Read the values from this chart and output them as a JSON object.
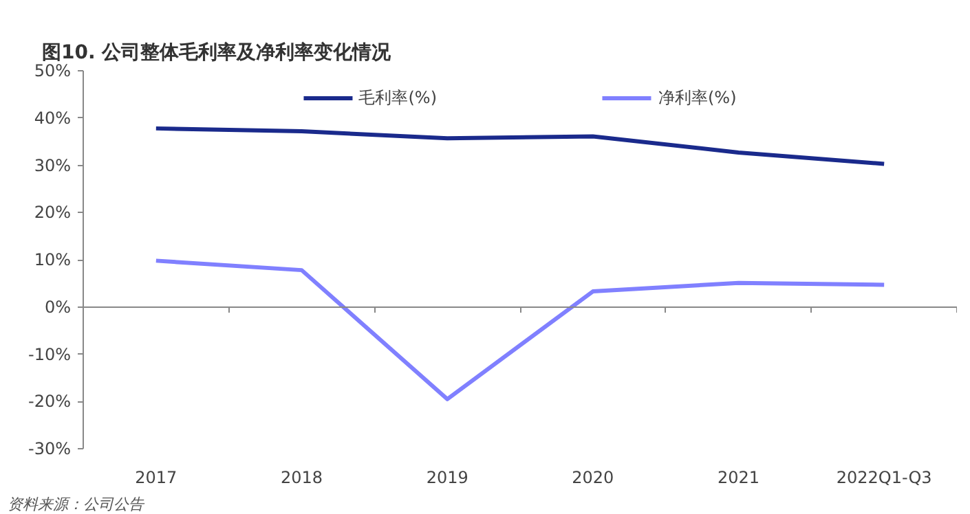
{
  "chart_data": {
    "type": "line",
    "title": "图10. 公司整体毛利率及净利率变化情况",
    "categories": [
      "2017",
      "2018",
      "2019",
      "2020",
      "2021",
      "2022Q1-Q3"
    ],
    "series": [
      {
        "name": "毛利率(%)",
        "color": "#1a2a8c",
        "values": [
          37.8,
          37.2,
          35.7,
          36.1,
          32.7,
          30.3
        ]
      },
      {
        "name": "净利率(%)",
        "color": "#8080ff",
        "values": [
          9.8,
          7.8,
          -19.5,
          3.3,
          5.1,
          4.7
        ]
      }
    ],
    "ylim": [
      -30,
      50
    ],
    "yticks": [
      {
        "value": -30,
        "label": "-30%"
      },
      {
        "value": -20,
        "label": "-20%"
      },
      {
        "value": -10,
        "label": "-10%"
      },
      {
        "value": 0,
        "label": "0%"
      },
      {
        "value": 10,
        "label": "10%"
      },
      {
        "value": 20,
        "label": "20%"
      },
      {
        "value": 30,
        "label": "30%"
      },
      {
        "value": 40,
        "label": "40%"
      },
      {
        "value": 50,
        "label": "50%"
      }
    ],
    "legend": "top",
    "marker": "none",
    "line_style": "solid",
    "annotations": [
      "资料来源：公司公告"
    ]
  }
}
